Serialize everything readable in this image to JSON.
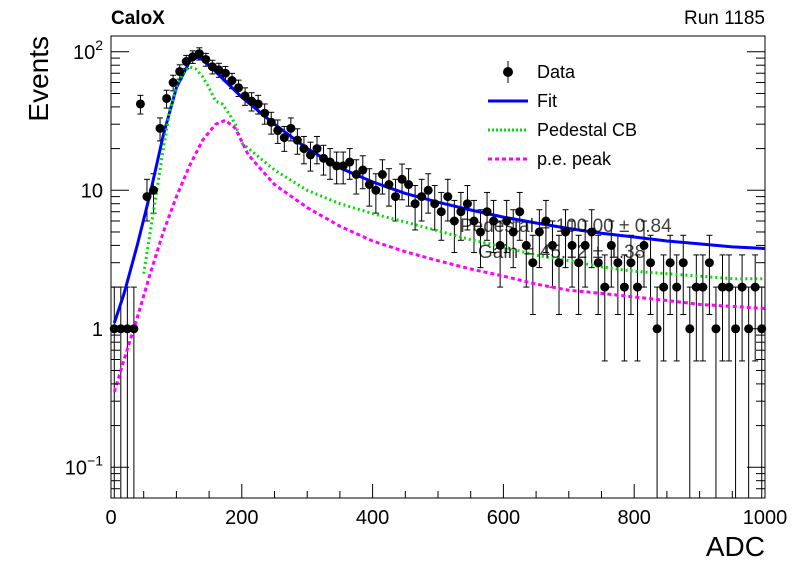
{
  "header": {
    "experiment": "CaloX",
    "run": "Run 1185"
  },
  "fit_overlay": {
    "line1": "Pedestal = 100.00 ± 0.84",
    "line2": "Gain = 45.12 ± 1.38"
  },
  "legend": [
    {
      "label": "Data",
      "kind": "marker",
      "color": "#000000"
    },
    {
      "label": "Fit",
      "kind": "line",
      "color": "#0000ff"
    },
    {
      "label": "Pedestal CB",
      "kind": "dotted",
      "color": "#00dd00"
    },
    {
      "label": "p.e. peak",
      "kind": "dashed",
      "color": "#ff00ff"
    }
  ],
  "chart_data": {
    "type": "scatter",
    "title": "",
    "xlabel": "ADC",
    "ylabel": "Events",
    "xlim": [
      0,
      1000
    ],
    "ylim": [
      0.06,
      130
    ],
    "yscale": "log",
    "grid": false,
    "legend_position": "top-right",
    "x_ticks": [
      "0",
      "200",
      "400",
      "600",
      "800",
      "1000"
    ],
    "y_ticks": [
      {
        "value": 0.1,
        "label": "10",
        "exp": "−1"
      },
      {
        "value": 1,
        "label": "1",
        "exp": ""
      },
      {
        "value": 10,
        "label": "10",
        "exp": ""
      },
      {
        "value": 100,
        "label": "10",
        "exp": "2"
      }
    ],
    "data_points": {
      "x": [
        5,
        15,
        25,
        35,
        45,
        55,
        65,
        75,
        85,
        95,
        105,
        115,
        125,
        135,
        145,
        155,
        165,
        175,
        185,
        195,
        205,
        215,
        225,
        235,
        245,
        255,
        265,
        275,
        285,
        295,
        305,
        315,
        325,
        335,
        345,
        355,
        365,
        375,
        385,
        395,
        405,
        415,
        425,
        435,
        445,
        455,
        465,
        475,
        485,
        495,
        505,
        515,
        525,
        535,
        545,
        555,
        565,
        575,
        585,
        595,
        605,
        615,
        625,
        635,
        645,
        655,
        665,
        675,
        685,
        695,
        705,
        715,
        725,
        735,
        745,
        755,
        765,
        775,
        785,
        795,
        805,
        815,
        825,
        835,
        845,
        855,
        865,
        875,
        885,
        895,
        905,
        915,
        925,
        935,
        945,
        955,
        965,
        975,
        985,
        995
      ],
      "y": [
        1,
        1,
        1,
        1,
        42,
        9,
        10,
        28,
        46,
        60,
        72,
        85,
        92,
        97,
        88,
        78,
        74,
        70,
        62,
        55,
        48,
        44,
        42,
        36,
        31,
        27,
        24,
        28,
        23,
        20,
        18,
        20,
        17,
        16,
        15,
        15,
        16,
        13,
        14,
        11,
        10,
        13,
        11,
        9,
        12,
        11,
        8,
        9,
        10,
        8,
        7,
        9,
        6,
        7,
        8,
        6,
        5,
        7,
        6,
        4,
        6,
        5,
        7,
        4,
        3,
        5,
        6,
        4,
        3,
        5,
        4,
        3,
        4,
        5,
        3,
        2,
        4,
        3,
        2,
        3,
        2,
        4,
        3,
        1,
        2,
        3,
        2,
        3,
        1,
        2,
        2,
        3,
        1,
        2,
        2,
        1,
        2,
        1,
        2,
        1
      ]
    },
    "series": [
      {
        "name": "Fit",
        "color": "#0000ff",
        "x": [
          5,
          20,
          40,
          60,
          80,
          100,
          120,
          130,
          140,
          160,
          180,
          200,
          250,
          300,
          350,
          400,
          450,
          500,
          550,
          600,
          650,
          700,
          750,
          800,
          850,
          900,
          950,
          1000
        ],
        "y": [
          1.1,
          1.8,
          4.0,
          9.5,
          25,
          55,
          85,
          92,
          88,
          72,
          58,
          47,
          30,
          20,
          14.5,
          11.5,
          9.5,
          8.2,
          7.2,
          6.4,
          5.8,
          5.3,
          4.9,
          4.6,
          4.3,
          4.1,
          3.9,
          3.8
        ]
      },
      {
        "name": "Pedestal CB",
        "color": "#00dd00",
        "x": [
          50,
          60,
          70,
          80,
          90,
          100,
          110,
          120,
          130,
          140,
          150,
          160,
          170,
          180,
          190,
          200,
          250,
          300,
          350,
          400,
          450,
          500,
          550,
          600,
          650,
          700,
          750,
          800,
          850,
          900,
          950,
          1000
        ],
        "y": [
          2.5,
          5,
          10,
          20,
          38,
          56,
          70,
          78,
          75,
          66,
          55,
          44,
          42,
          36,
          30,
          22,
          14,
          10,
          8,
          6.8,
          5.9,
          5.1,
          4.4,
          3.9,
          3.4,
          3.1,
          2.8,
          2.6,
          2.5,
          2.4,
          2.3,
          2.3
        ]
      },
      {
        "name": "p.e. peak",
        "color": "#ff00ff",
        "x": [
          5,
          20,
          40,
          60,
          80,
          100,
          120,
          140,
          160,
          175,
          190,
          210,
          250,
          300,
          350,
          400,
          450,
          500,
          550,
          600,
          650,
          700,
          750,
          800,
          850,
          900,
          950,
          1000
        ],
        "y": [
          0.35,
          0.6,
          1.2,
          2.5,
          5,
          9,
          15,
          23,
          30,
          32,
          28,
          18,
          11,
          7.5,
          5.5,
          4.3,
          3.6,
          3.1,
          2.7,
          2.4,
          2.1,
          1.9,
          1.8,
          1.7,
          1.6,
          1.5,
          1.45,
          1.4
        ]
      }
    ]
  }
}
